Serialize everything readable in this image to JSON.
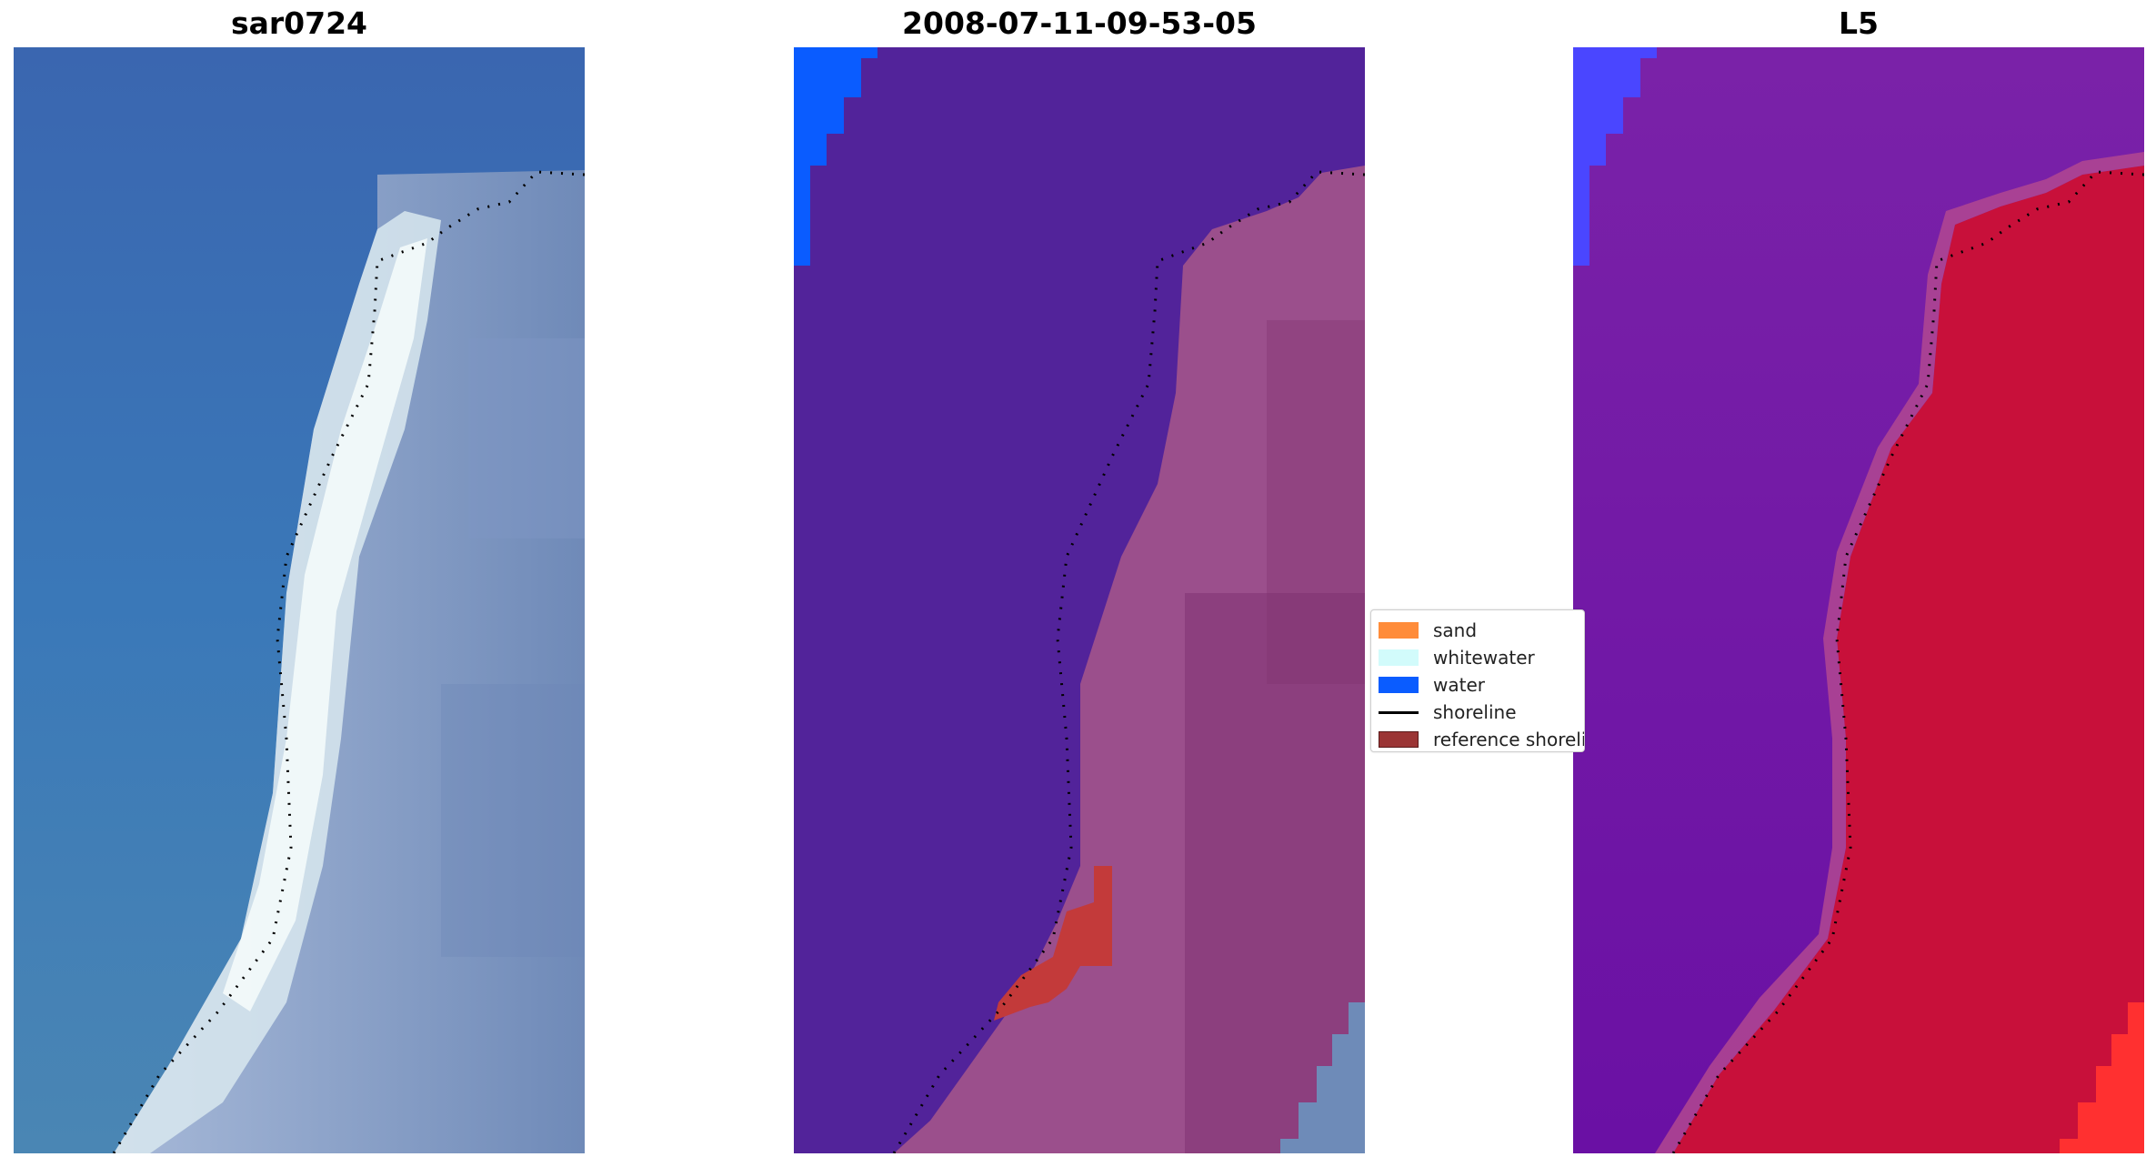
{
  "panels": [
    {
      "title": "sar0724"
    },
    {
      "title": "2008-07-11-09-53-05"
    },
    {
      "title": "L5"
    }
  ],
  "legend": {
    "items": [
      {
        "label": "sand",
        "color": "#ff8c3a"
      },
      {
        "label": "whitewater",
        "color": "#d2fbfb"
      },
      {
        "label": "water",
        "color": "#0a5cff"
      },
      {
        "label": "shoreline",
        "color": "#000000"
      },
      {
        "label": "reference shoreline",
        "color": "#9b3535"
      }
    ]
  },
  "colors": {
    "sea_rgb": "#3a6fb8",
    "surf_white": "#e8f4f4",
    "classified_water": "#52239a",
    "classified_land": "#9b4f8c",
    "water_mask": "#0a5cff",
    "ref_shoreline": "#c33a3a",
    "ndwi_water": "#6a1aa8",
    "ndwi_land": "#c8103a"
  }
}
